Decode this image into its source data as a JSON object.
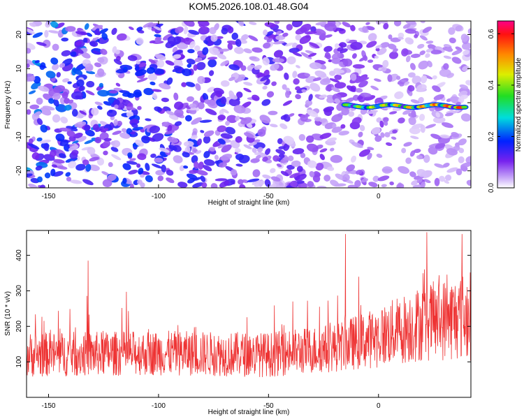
{
  "figure": {
    "title": "KOM5.2026.108.01.48.G04"
  },
  "chart_data": [
    {
      "type": "heatmap",
      "name": "spectrogram",
      "xlabel": "Height of straight line (km)",
      "ylabel": "Frequency (Hz)",
      "xlim": [
        -160,
        42
      ],
      "ylim": [
        -25,
        24
      ],
      "xticks": [
        -150,
        -100,
        -50,
        0
      ],
      "yticks": [
        -20,
        -10,
        0,
        10,
        20
      ],
      "signal_track": {
        "frequency_hz": -1,
        "x_start": -15,
        "x_end": 40,
        "peak_amplitude": 0.62
      },
      "background_amplitude_range": [
        0.0,
        0.25
      ],
      "colorbar": {
        "label": "Normalized spectral amplitude",
        "range": [
          0.0,
          0.65
        ],
        "ticks": [
          0.0,
          0.2,
          0.4,
          0.6
        ],
        "tick_labels": [
          "0.0",
          "0.2",
          "0.4",
          "0.6"
        ]
      }
    },
    {
      "type": "line",
      "name": "snr",
      "xlabel": "Height of straight line (km)",
      "ylabel": "SNR (10 * v/v)",
      "xlim": [
        -160,
        42
      ],
      "ylim": [
        0,
        470
      ],
      "xticks": [
        -150,
        -100,
        -50,
        0
      ],
      "yticks": [
        100,
        200,
        300,
        400
      ],
      "color": "#ee3333",
      "trend_x": [
        -160,
        -100,
        -50,
        -20,
        0,
        20,
        42
      ],
      "trend_mean": [
        120,
        125,
        120,
        140,
        170,
        210,
        230
      ],
      "trend_noise": [
        55,
        55,
        55,
        60,
        75,
        95,
        110
      ],
      "peaks": [
        {
          "x": -132,
          "y": 385
        },
        {
          "x": -15,
          "y": 460
        },
        {
          "x": 22,
          "y": 465
        },
        {
          "x": 38,
          "y": 460
        }
      ]
    }
  ]
}
